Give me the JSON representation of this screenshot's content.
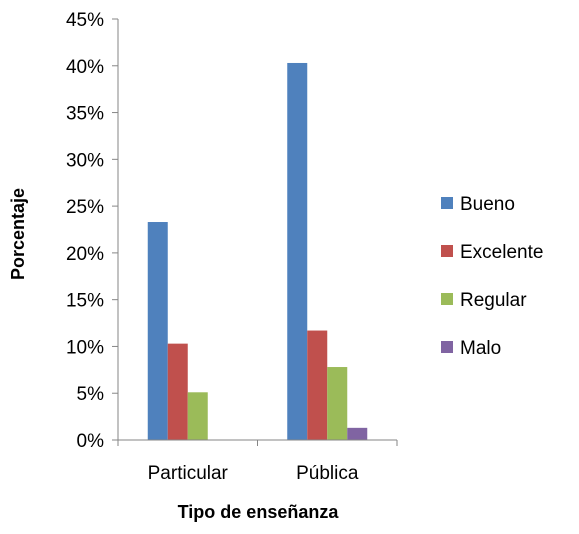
{
  "chart_data": {
    "type": "bar",
    "xlabel": "Tipo de enseñanza",
    "ylabel": "Porcentaje",
    "ylim": [
      0,
      45
    ],
    "ytick_step": 5,
    "ytick_labels": [
      "0%",
      "5%",
      "10%",
      "15%",
      "20%",
      "25%",
      "30%",
      "35%",
      "40%",
      "45%"
    ],
    "grid": false,
    "legend_position": "right",
    "categories": [
      "Particular",
      "Pública"
    ],
    "series": [
      {
        "name": "Bueno",
        "color": "#4F81BD",
        "values": [
          23.3,
          40.3
        ]
      },
      {
        "name": "Excelente",
        "color": "#C0504D",
        "values": [
          10.3,
          11.7
        ]
      },
      {
        "name": "Regular",
        "color": "#9BBB59",
        "values": [
          5.1,
          7.8
        ]
      },
      {
        "name": "Malo",
        "color": "#8064A2",
        "values": [
          0,
          1.3
        ]
      }
    ]
  }
}
